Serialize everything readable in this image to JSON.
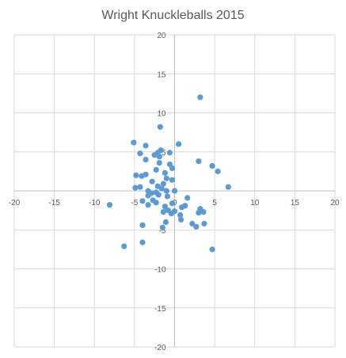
{
  "chart_data": {
    "type": "scatter",
    "title": "Wright Knuckleballs 2015",
    "xlabel": "",
    "ylabel": "",
    "xlim": [
      -20,
      20
    ],
    "ylim": [
      -20,
      20
    ],
    "x_ticks": [
      -20,
      -15,
      -10,
      -5,
      0,
      5,
      10,
      15,
      20
    ],
    "y_ticks": [
      20,
      15,
      10,
      5,
      -5,
      -10,
      -15,
      -20
    ],
    "grid": true,
    "legend": "none",
    "marker_color": "#5b9bd5",
    "series": [
      {
        "points": [
          {
            "x": 3.2,
            "y": 12.0
          },
          {
            "x": -1.8,
            "y": 8.2
          },
          {
            "x": -5.1,
            "y": 6.2
          },
          {
            "x": 0.5,
            "y": 6.0
          },
          {
            "x": -3.6,
            "y": 5.8
          },
          {
            "x": -1.7,
            "y": 5.2
          },
          {
            "x": -2.1,
            "y": 4.9
          },
          {
            "x": -0.6,
            "y": 4.9
          },
          {
            "x": -4.3,
            "y": 4.8
          },
          {
            "x": -2.5,
            "y": 4.6
          },
          {
            "x": -1.9,
            "y": 4.4
          },
          {
            "x": -3.6,
            "y": 4.0
          },
          {
            "x": 3.0,
            "y": 3.8
          },
          {
            "x": -1.9,
            "y": 3.6
          },
          {
            "x": -0.6,
            "y": 3.4
          },
          {
            "x": 4.7,
            "y": 3.2
          },
          {
            "x": -0.3,
            "y": 2.9
          },
          {
            "x": -2.3,
            "y": 2.7
          },
          {
            "x": 5.4,
            "y": 2.5
          },
          {
            "x": -1.2,
            "y": 2.3
          },
          {
            "x": -3.6,
            "y": 2.1
          },
          {
            "x": -4.8,
            "y": 2.0
          },
          {
            "x": -4.1,
            "y": 1.9
          },
          {
            "x": -1.0,
            "y": 1.6
          },
          {
            "x": -0.3,
            "y": 1.4
          },
          {
            "x": -2.8,
            "y": 1.2
          },
          {
            "x": -1.4,
            "y": 0.9
          },
          {
            "x": -4.3,
            "y": 0.5
          },
          {
            "x": -2.1,
            "y": 0.6
          },
          {
            "x": 6.7,
            "y": 0.5
          },
          {
            "x": -4.9,
            "y": 0.4
          },
          {
            "x": -1.6,
            "y": 0.3
          },
          {
            "x": -3.3,
            "y": 0.0
          },
          {
            "x": -1.0,
            "y": 0.0
          },
          {
            "x": 0.0,
            "y": 0.0
          },
          {
            "x": -2.9,
            "y": -0.3
          },
          {
            "x": -2.3,
            "y": -0.2
          },
          {
            "x": -2.0,
            "y": -0.5
          },
          {
            "x": -3.3,
            "y": -0.6
          },
          {
            "x": -0.9,
            "y": -0.7
          },
          {
            "x": 1.6,
            "y": -0.9
          },
          {
            "x": -2.7,
            "y": -1.2
          },
          {
            "x": -4.0,
            "y": -1.3
          },
          {
            "x": -2.3,
            "y": -1.5
          },
          {
            "x": -0.3,
            "y": -1.6
          },
          {
            "x": -3.3,
            "y": -1.8
          },
          {
            "x": 1.3,
            "y": -1.9
          },
          {
            "x": -1.2,
            "y": -2.0
          },
          {
            "x": 0.9,
            "y": -2.1
          },
          {
            "x": 3.2,
            "y": -2.3
          },
          {
            "x": -0.8,
            "y": -2.5
          },
          {
            "x": 0.0,
            "y": -2.6
          },
          {
            "x": -1.4,
            "y": -2.7
          },
          {
            "x": 3.6,
            "y": -2.7
          },
          {
            "x": 3.0,
            "y": -2.8
          },
          {
            "x": -0.4,
            "y": -2.9
          },
          {
            "x": 0.7,
            "y": -3.1
          },
          {
            "x": 0.8,
            "y": -3.7
          },
          {
            "x": -1.1,
            "y": -4.0
          },
          {
            "x": 2.2,
            "y": -4.2
          },
          {
            "x": 3.7,
            "y": -4.2
          },
          {
            "x": 2.7,
            "y": -4.6
          },
          {
            "x": -1.5,
            "y": -4.7
          },
          {
            "x": -4.0,
            "y": -4.4
          },
          {
            "x": -8.1,
            "y": -1.8
          },
          {
            "x": -4.0,
            "y": -6.6
          },
          {
            "x": -6.3,
            "y": -7.1
          },
          {
            "x": 4.7,
            "y": -7.5
          }
        ]
      }
    ]
  }
}
